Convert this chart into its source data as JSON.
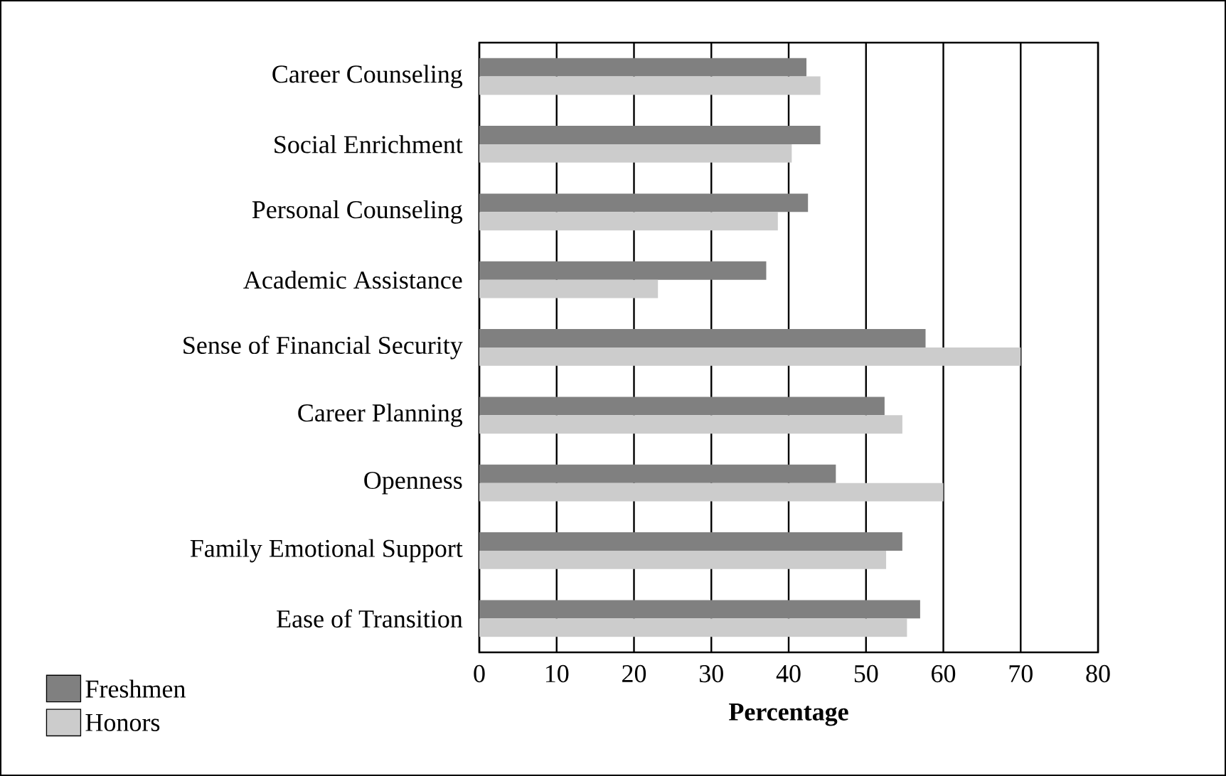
{
  "chart_data": {
    "type": "bar",
    "orientation": "horizontal",
    "xlabel": "Percentage",
    "categories": [
      "Career Counseling",
      "Social Enrichment",
      "Personal Counseling",
      "Academic Assistance",
      "Sense of Financial Security",
      "Career Planning",
      "Openness",
      "Family Emotional Support",
      "Ease of Transition"
    ],
    "series": [
      {
        "name": "Freshmen",
        "color": "#808080",
        "values": [
          42.3,
          44.1,
          42.5,
          37.1,
          57.7,
          52.4,
          46.1,
          54.7,
          57.0
        ]
      },
      {
        "name": "Honors",
        "color": "#cccccc",
        "values": [
          44.1,
          40.4,
          38.6,
          23.1,
          70,
          54.7,
          60,
          52.6,
          55.3
        ]
      }
    ],
    "xlim": [
      0,
      80
    ],
    "xticks": [
      0,
      10,
      20,
      30,
      40,
      50,
      60,
      70,
      80
    ],
    "grid": "x",
    "legend": "bottom left"
  }
}
